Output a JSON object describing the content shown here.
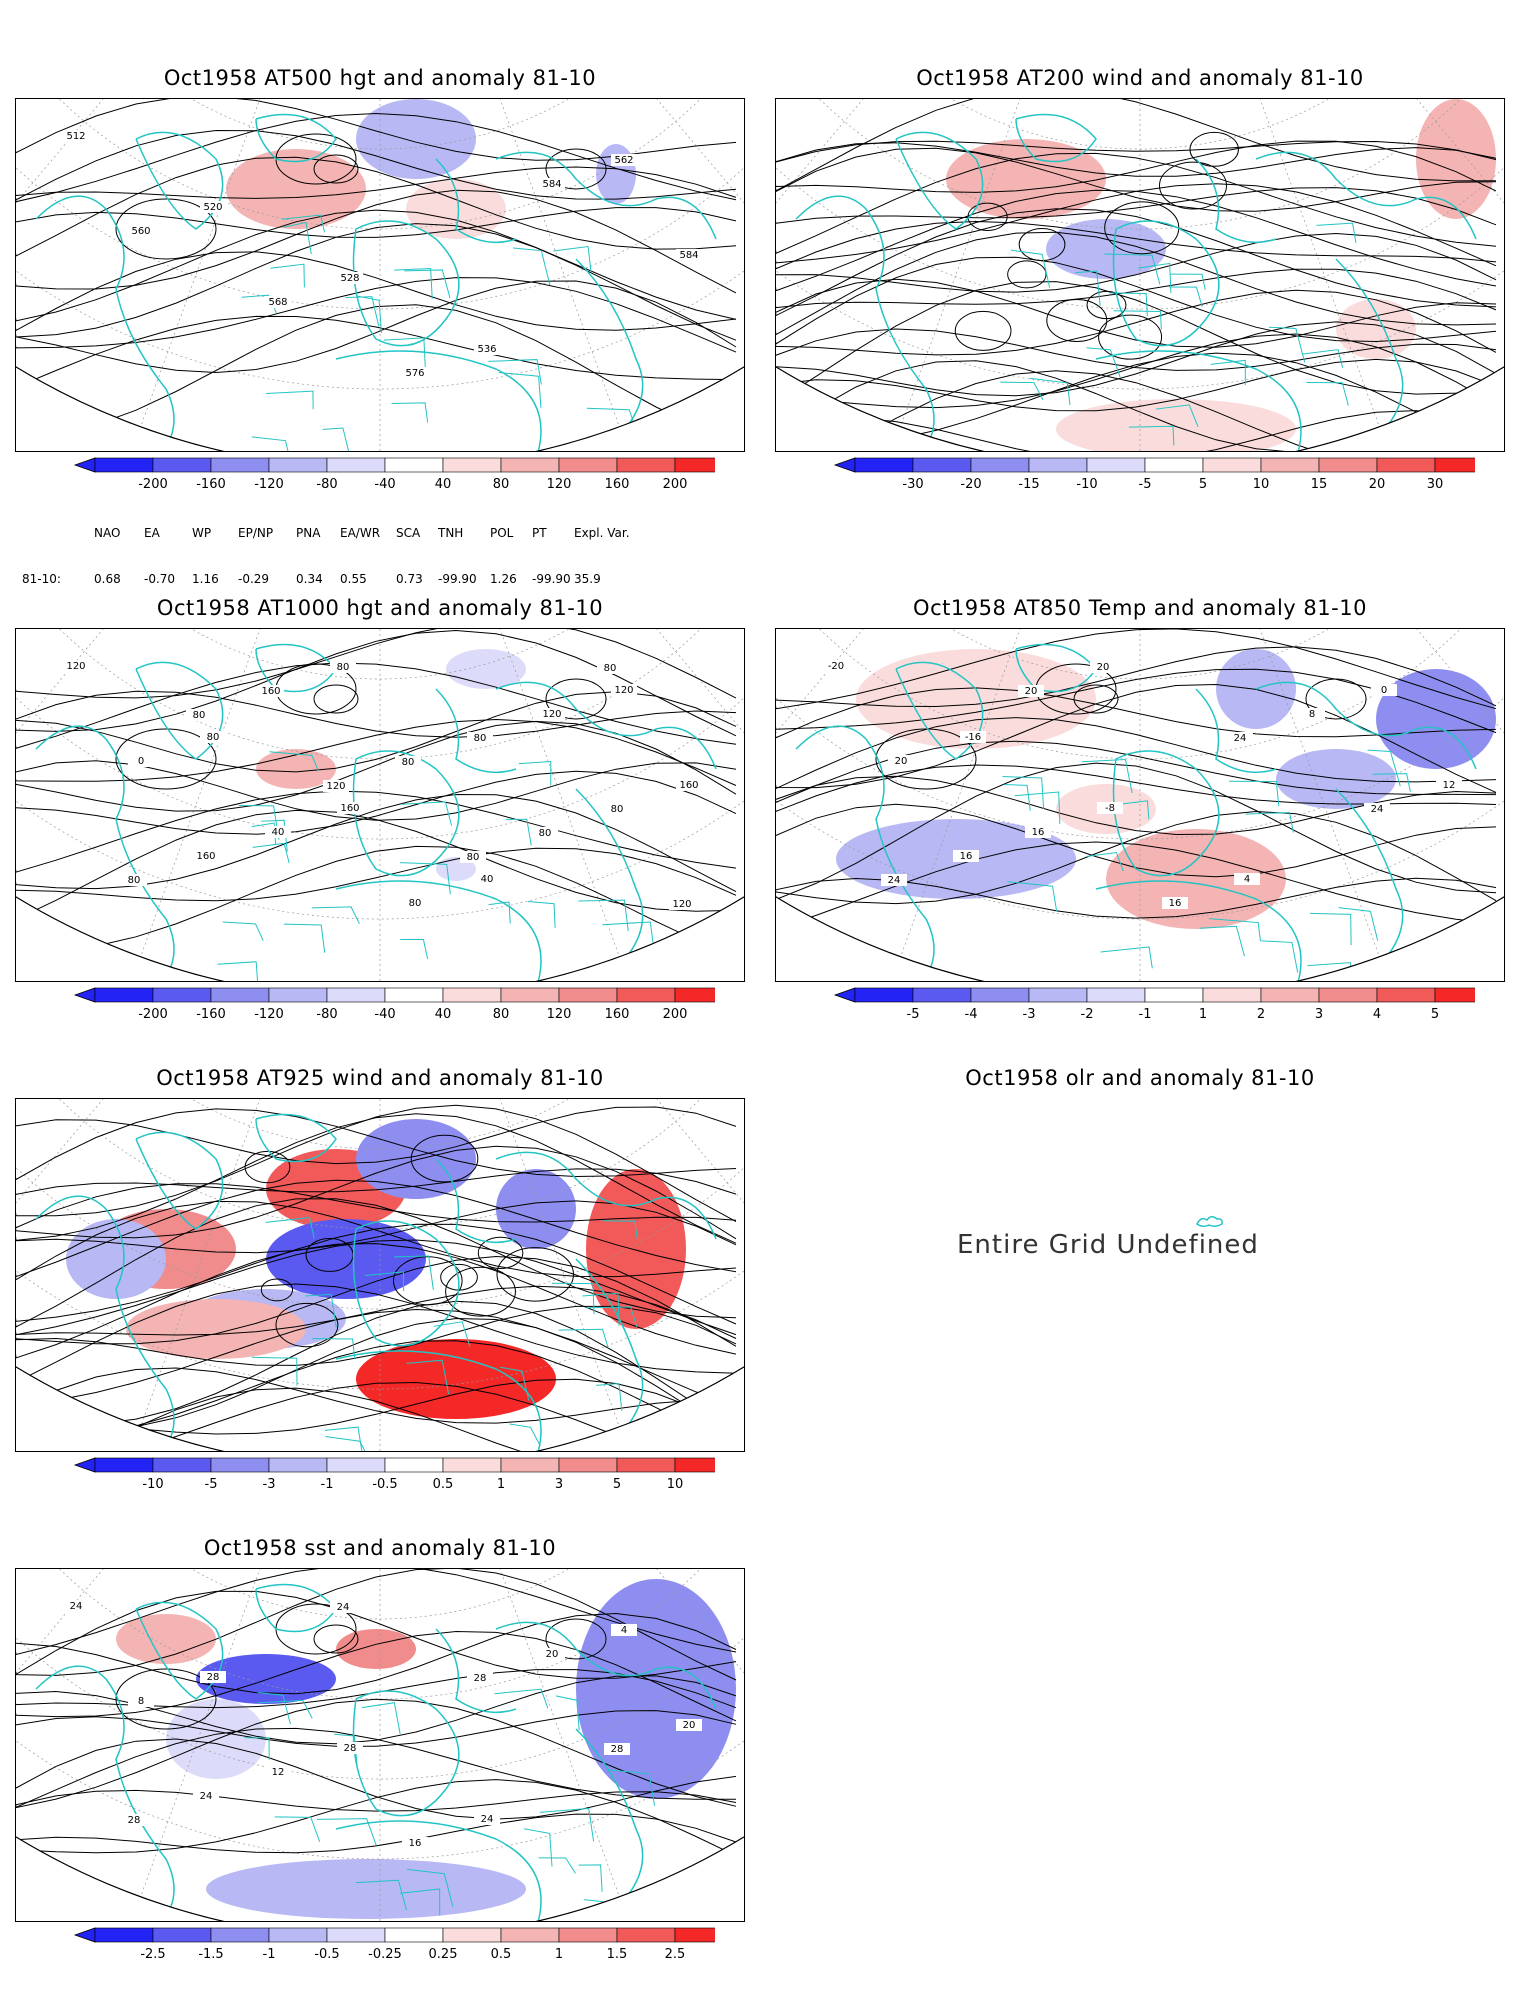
{
  "panels": [
    {
      "id": "p1",
      "title": "Oct1958 AT500 hgt and anomaly 81-10",
      "contour_labels": [
        "512",
        "520",
        "528",
        "536",
        "562",
        "560",
        "568",
        "576",
        "584",
        "584"
      ],
      "colorbar": {
        "ticks": [
          "-200",
          "-160",
          "-120",
          "-80",
          "-40",
          "40",
          "80",
          "120",
          "160",
          "200"
        ]
      }
    },
    {
      "id": "p2",
      "title": "Oct1958 AT200 wind and anomaly 81-10",
      "colorbar": {
        "ticks": [
          "-30",
          "-20",
          "-15",
          "-10",
          "-5",
          "5",
          "10",
          "15",
          "20",
          "30"
        ]
      }
    },
    {
      "id": "p3",
      "title": "Oct1958 AT1000 hgt and anomaly 81-10",
      "contour_labels": [
        "120",
        "80",
        "160",
        "40",
        "120",
        "0",
        "40",
        "80",
        "120",
        "160",
        "160",
        "80",
        "80",
        "80",
        "80",
        "160",
        "80",
        "80",
        "120",
        "80",
        "120",
        "80",
        "80"
      ],
      "colorbar": {
        "ticks": [
          "-200",
          "-160",
          "-120",
          "-80",
          "-40",
          "40",
          "80",
          "120",
          "160",
          "200"
        ]
      }
    },
    {
      "id": "p4",
      "title": "Oct1958 AT850 Temp and anomaly 81-10",
      "contour_labels": [
        "-20",
        "-16",
        "-8",
        "4",
        "0",
        "20",
        "16",
        "16",
        "8",
        "12",
        "16",
        "20",
        "24",
        "24",
        "24",
        "20"
      ],
      "colorbar": {
        "ticks": [
          "-5",
          "-4",
          "-3",
          "-2",
          "-1",
          "1",
          "2",
          "3",
          "4",
          "5"
        ]
      }
    },
    {
      "id": "p5",
      "title": "Oct1958 AT925 wind and anomaly 81-10",
      "colorbar": {
        "ticks": [
          "-10",
          "-5",
          "-3",
          "-1",
          "-0.5",
          "0.5",
          "1",
          "3",
          "5",
          "10"
        ]
      }
    },
    {
      "id": "p6",
      "title": "Oct1958 olr and anomaly 81-10",
      "message": "Entire Grid Undefined"
    },
    {
      "id": "p7",
      "title": "Oct1958 sst and anomaly 81-10",
      "contour_labels": [
        "24",
        "28",
        "28",
        "24",
        "4",
        "8",
        "12",
        "16",
        "20",
        "20",
        "24",
        "24",
        "28",
        "28",
        "28"
      ],
      "colorbar": {
        "ticks": [
          "-2.5",
          "-1.5",
          "-1",
          "-0.5",
          "-0.25",
          "0.25",
          "0.5",
          "1",
          "1.5",
          "2.5"
        ]
      }
    }
  ],
  "indices": {
    "headers": [
      "NAO",
      "EA",
      "WP",
      "EP/NP",
      "PNA",
      "EA/WR",
      "SCA",
      "TNH",
      "POL",
      "PT",
      "Expl. Var."
    ],
    "row_label": "81-10:",
    "values": [
      "0.68",
      "-0.70",
      "1.16",
      "-0.29",
      "0.34",
      "0.55",
      "0.73",
      "-99.90",
      "1.26",
      "-99.90",
      "35.9"
    ]
  },
  "colors": {
    "coast": "#22c4c4",
    "neg": [
      "#2323f5",
      "#5a5af0",
      "#8e8ef0",
      "#b8b8f5",
      "#dcdcfa"
    ],
    "pos": [
      "#fadcdc",
      "#f5b4b4",
      "#f08c8c",
      "#f25a5a",
      "#f52828"
    ]
  }
}
